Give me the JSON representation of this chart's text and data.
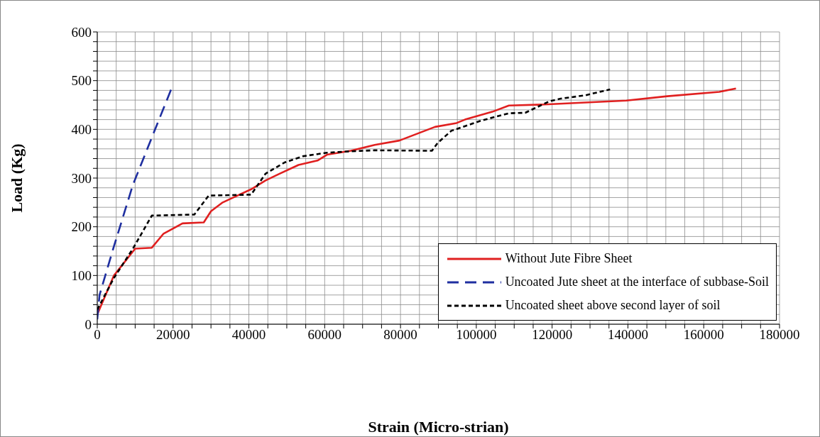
{
  "chart_data": {
    "type": "line",
    "xlabel": "Strain (Micro-strian)",
    "ylabel": "Load (Kg)",
    "xlim": [
      0,
      180000
    ],
    "ylim": [
      0,
      600
    ],
    "xticks": [
      0,
      {
        "value": 5000,
        "label": null
      },
      {
        "value": 10000,
        "label": null
      },
      {
        "value": 15000,
        "label": null
      },
      20000,
      {
        "value": 25000,
        "label": null
      },
      {
        "value": 30000,
        "label": null
      },
      {
        "value": 35000,
        "label": null
      },
      40000,
      {
        "value": 45000,
        "label": null
      },
      {
        "value": 50000,
        "label": null
      },
      {
        "value": 55000,
        "label": null
      },
      60000,
      {
        "value": 65000,
        "label": null
      },
      {
        "value": 70000,
        "label": null
      },
      {
        "value": 75000,
        "label": null
      },
      80000,
      {
        "value": 85000,
        "label": null
      },
      {
        "value": 90000,
        "label": null
      },
      {
        "value": 95000,
        "label": null
      },
      100000,
      {
        "value": 105000,
        "label": null
      },
      {
        "value": 110000,
        "label": null
      },
      {
        "value": 115000,
        "label": null
      },
      120000,
      {
        "value": 125000,
        "label": null
      },
      {
        "value": 130000,
        "label": null
      },
      {
        "value": 135000,
        "label": null
      },
      140000,
      {
        "value": 145000,
        "label": null
      },
      {
        "value": 150000,
        "label": null
      },
      {
        "value": 155000,
        "label": null
      },
      160000,
      {
        "value": 165000,
        "label": null
      },
      {
        "value": 170000,
        "label": null
      },
      {
        "value": 175000,
        "label": null
      },
      180000
    ],
    "yticks": [
      0,
      {
        "value": 20,
        "label": null
      },
      {
        "value": 40,
        "label": null
      },
      {
        "value": 60,
        "label": null
      },
      {
        "value": 80,
        "label": null
      },
      100,
      {
        "value": 120,
        "label": null
      },
      {
        "value": 140,
        "label": null
      },
      {
        "value": 160,
        "label": null
      },
      {
        "value": 180,
        "label": null
      },
      200,
      {
        "value": 220,
        "label": null
      },
      {
        "value": 240,
        "label": null
      },
      {
        "value": 260,
        "label": null
      },
      {
        "value": 280,
        "label": null
      },
      300,
      {
        "value": 320,
        "label": null
      },
      {
        "value": 340,
        "label": null
      },
      {
        "value": 360,
        "label": null
      },
      {
        "value": 380,
        "label": null
      },
      400,
      {
        "value": 420,
        "label": null
      },
      {
        "value": 440,
        "label": null
      },
      {
        "value": 460,
        "label": null
      },
      {
        "value": 480,
        "label": null
      },
      500,
      {
        "value": 520,
        "label": null
      },
      {
        "value": 540,
        "label": null
      },
      {
        "value": 560,
        "label": null
      },
      {
        "value": 580,
        "label": null
      },
      600
    ],
    "grid": true,
    "legend": "bottom right",
    "marker": "none",
    "series": [
      {
        "name": "Without Jute Fibre Sheet",
        "color": "#e02020",
        "line_style": "solid",
        "x": [
          0,
          4400,
          10000,
          14400,
          17500,
          22500,
          28100,
          30000,
          33100,
          35600,
          40600,
          44400,
          48100,
          53100,
          58100,
          60600,
          66900,
          73200,
          79700,
          89100,
          94800,
          97000,
          104200,
          108600,
          118000,
          139600,
          150400,
          164100,
          168500
        ],
        "values": [
          20,
          100,
          155,
          157,
          186,
          207,
          209,
          232,
          250,
          259,
          277,
          295,
          309,
          327,
          336,
          348,
          356,
          368,
          377,
          405,
          413,
          420,
          436,
          449,
          451,
          459,
          468,
          477,
          484
        ]
      },
      {
        "name": "Uncoated Jute sheet at the interface of subbase-Soil",
        "color": "#1f2fa0",
        "line_style": "dashed",
        "x": [
          0,
          600,
          4400,
          9400,
          15000,
          19700
        ],
        "values": [
          10,
          60,
          160,
          286,
          395,
          486
        ]
      },
      {
        "name": "Uncoated sheet above second layer of soil",
        "color": "#000000",
        "line_style": "dotted",
        "x": [
          0,
          4400,
          9400,
          14400,
          25600,
          29400,
          40600,
          44400,
          49400,
          54400,
          60600,
          66900,
          73100,
          88300,
          89800,
          93400,
          101300,
          108600,
          112900,
          119400,
          122300,
          128800,
          135300
        ],
        "values": [
          30,
          95,
          155,
          223,
          225,
          264,
          266,
          309,
          332,
          345,
          352,
          355,
          357,
          356,
          372,
          397,
          418,
          433,
          434,
          458,
          463,
          470,
          482
        ]
      }
    ]
  }
}
